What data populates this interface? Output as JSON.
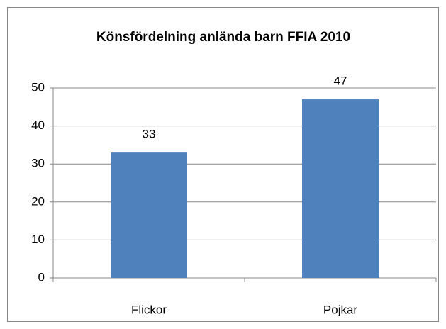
{
  "chart_data": {
    "type": "bar",
    "title": "Könsfördelning anlända barn FFIA 2010",
    "categories": [
      "Flickor",
      "Pojkar"
    ],
    "values": [
      33,
      47
    ],
    "color": "#4f81bd",
    "ylim": [
      0,
      50
    ],
    "yticks": [
      0,
      10,
      20,
      30,
      40,
      50
    ],
    "grid": true
  }
}
